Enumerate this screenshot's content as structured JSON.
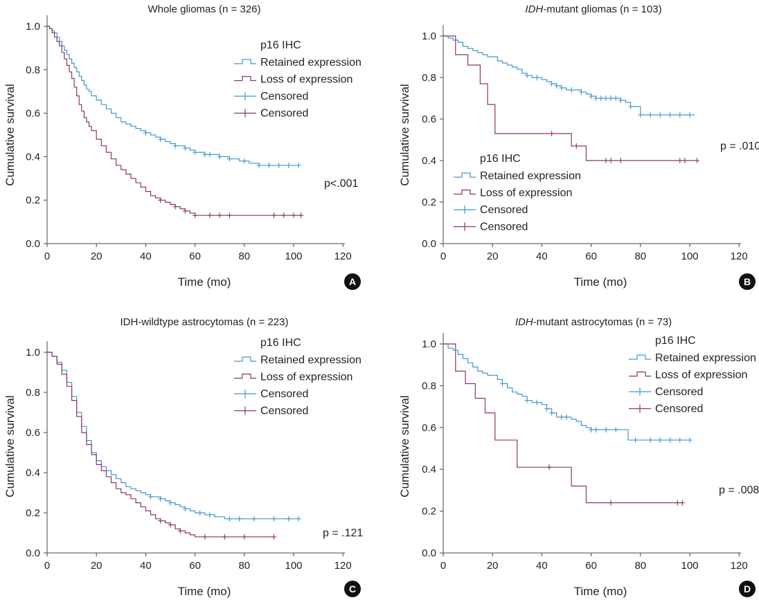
{
  "figure": {
    "colors": {
      "retained": "#3f97cf",
      "loss": "#8c3562",
      "axis": "#444444",
      "badge": "#111111"
    }
  },
  "chart_data": [
    {
      "type": "line",
      "title": "Whole gliomas (n = 326)",
      "title_italic": "",
      "title_rest": "Whole gliomas (n = 326)",
      "xlabel": "Time (mo)",
      "ylabel": "Cumulative survival",
      "xlim": [
        0,
        120
      ],
      "ylim": [
        0,
        1.0
      ],
      "xticks": [
        "0",
        "20",
        "40",
        "60",
        "80",
        "100",
        "120"
      ],
      "yticks": [
        "0.0",
        "0.2",
        "0.4",
        "0.6",
        "0.8",
        "1.0"
      ],
      "legend_title": "p16 IHC",
      "legend": [
        "Retained expression",
        "Loss of expression",
        "Censored",
        "Censored"
      ],
      "legend_position": "upper-right",
      "pvalue": "p<.001",
      "panel_label": "A",
      "series": [
        {
          "name": "Retained expression",
          "x": [
            0,
            1,
            2,
            3,
            4,
            5,
            6,
            7,
            8,
            9,
            10,
            11,
            12,
            13,
            14,
            15,
            16,
            17,
            18,
            20,
            22,
            24,
            26,
            28,
            30,
            32,
            34,
            36,
            38,
            40,
            42,
            44,
            46,
            48,
            50,
            52,
            54,
            56,
            58,
            60,
            62,
            64,
            66,
            68,
            70,
            72,
            74,
            76,
            78,
            80,
            82,
            84,
            86,
            88,
            90,
            92,
            94,
            96,
            98,
            100,
            102
          ],
          "y": [
            1.0,
            0.99,
            0.98,
            0.97,
            0.95,
            0.93,
            0.91,
            0.89,
            0.87,
            0.85,
            0.83,
            0.81,
            0.79,
            0.77,
            0.75,
            0.73,
            0.71,
            0.7,
            0.68,
            0.66,
            0.64,
            0.62,
            0.6,
            0.58,
            0.56,
            0.55,
            0.54,
            0.53,
            0.52,
            0.51,
            0.5,
            0.49,
            0.48,
            0.47,
            0.46,
            0.45,
            0.45,
            0.44,
            0.43,
            0.42,
            0.42,
            0.41,
            0.41,
            0.41,
            0.4,
            0.4,
            0.39,
            0.39,
            0.38,
            0.38,
            0.37,
            0.37,
            0.36,
            0.36,
            0.36,
            0.36,
            0.36,
            0.36,
            0.36,
            0.36,
            0.36
          ],
          "censored_x": [
            40,
            46,
            52,
            56,
            60,
            64,
            66,
            70,
            74,
            80,
            86,
            90,
            94,
            98,
            102
          ],
          "censored_y": [
            0.51,
            0.48,
            0.45,
            0.44,
            0.42,
            0.41,
            0.41,
            0.4,
            0.39,
            0.38,
            0.36,
            0.36,
            0.36,
            0.36,
            0.36
          ]
        },
        {
          "name": "Loss of expression",
          "x": [
            0,
            1,
            2,
            3,
            4,
            5,
            6,
            7,
            8,
            9,
            10,
            11,
            12,
            13,
            14,
            15,
            16,
            17,
            18,
            20,
            22,
            24,
            26,
            28,
            30,
            32,
            34,
            36,
            38,
            40,
            42,
            44,
            46,
            48,
            50,
            52,
            54,
            56,
            58,
            60,
            62,
            64,
            70,
            80,
            90,
            100,
            103
          ],
          "y": [
            1.0,
            0.99,
            0.97,
            0.95,
            0.93,
            0.91,
            0.88,
            0.85,
            0.82,
            0.79,
            0.76,
            0.72,
            0.68,
            0.64,
            0.61,
            0.58,
            0.56,
            0.54,
            0.52,
            0.48,
            0.45,
            0.42,
            0.39,
            0.36,
            0.34,
            0.32,
            0.3,
            0.28,
            0.26,
            0.24,
            0.22,
            0.21,
            0.2,
            0.19,
            0.18,
            0.17,
            0.16,
            0.15,
            0.14,
            0.13,
            0.13,
            0.13,
            0.13,
            0.13,
            0.13,
            0.13,
            0.13
          ],
          "censored_x": [
            46,
            52,
            56,
            60,
            66,
            70,
            74,
            92,
            96,
            100,
            103
          ],
          "censored_y": [
            0.2,
            0.17,
            0.15,
            0.13,
            0.13,
            0.13,
            0.13,
            0.13,
            0.13,
            0.13,
            0.13
          ]
        }
      ]
    },
    {
      "type": "line",
      "title": "IDH-mutant gliomas (n = 103)",
      "title_italic": "IDH",
      "title_rest": "-mutant gliomas (n = 103)",
      "xlabel": "Time (mo)",
      "ylabel": "Cumulative survival",
      "xlim": [
        0,
        120
      ],
      "ylim": [
        0,
        1.0
      ],
      "xticks": [
        "0",
        "20",
        "40",
        "60",
        "80",
        "100",
        "120"
      ],
      "yticks": [
        "0.0",
        "0.2",
        "0.4",
        "0.6",
        "0.8",
        "1.0"
      ],
      "legend_title": "p16 IHC",
      "legend": [
        "Retained expression",
        "Loss of expression",
        "Censored",
        "Censored"
      ],
      "legend_position": "lower-left",
      "pvalue": "p = .010",
      "panel_label": "B",
      "series": [
        {
          "name": "Retained expression",
          "x": [
            0,
            2,
            4,
            6,
            8,
            10,
            12,
            14,
            16,
            18,
            20,
            22,
            24,
            26,
            28,
            30,
            32,
            34,
            36,
            38,
            40,
            42,
            44,
            46,
            48,
            50,
            52,
            54,
            56,
            58,
            60,
            62,
            64,
            66,
            68,
            70,
            72,
            74,
            76,
            78,
            80,
            82,
            84,
            86,
            88,
            90,
            92,
            94,
            96,
            98,
            100,
            102
          ],
          "y": [
            1.0,
            0.99,
            0.98,
            0.97,
            0.95,
            0.94,
            0.93,
            0.92,
            0.91,
            0.9,
            0.9,
            0.88,
            0.87,
            0.86,
            0.85,
            0.84,
            0.82,
            0.81,
            0.8,
            0.8,
            0.79,
            0.78,
            0.77,
            0.76,
            0.75,
            0.74,
            0.74,
            0.74,
            0.73,
            0.72,
            0.71,
            0.7,
            0.7,
            0.7,
            0.7,
            0.7,
            0.69,
            0.68,
            0.66,
            0.66,
            0.62,
            0.62,
            0.62,
            0.62,
            0.62,
            0.62,
            0.62,
            0.62,
            0.62,
            0.62,
            0.62,
            0.62
          ],
          "censored_x": [
            34,
            38,
            44,
            46,
            48,
            52,
            56,
            60,
            62,
            64,
            66,
            68,
            70,
            72,
            76,
            80,
            84,
            88,
            92,
            96,
            100
          ],
          "censored_y": [
            0.81,
            0.8,
            0.77,
            0.76,
            0.75,
            0.74,
            0.73,
            0.71,
            0.7,
            0.7,
            0.7,
            0.7,
            0.7,
            0.69,
            0.66,
            0.62,
            0.62,
            0.62,
            0.62,
            0.62,
            0.62
          ]
        },
        {
          "name": "Loss of expression",
          "x": [
            0,
            5,
            10,
            15,
            18,
            21,
            30,
            40,
            44,
            50,
            52,
            56,
            58,
            64,
            70,
            80,
            90,
            96,
            103
          ],
          "y": [
            1.0,
            0.91,
            0.86,
            0.77,
            0.67,
            0.53,
            0.53,
            0.53,
            0.53,
            0.53,
            0.47,
            0.47,
            0.4,
            0.4,
            0.4,
            0.4,
            0.4,
            0.4,
            0.4
          ],
          "censored_x": [
            44,
            54,
            66,
            68,
            72,
            96,
            98,
            103
          ],
          "censored_y": [
            0.53,
            0.47,
            0.4,
            0.4,
            0.4,
            0.4,
            0.4,
            0.4
          ]
        }
      ]
    },
    {
      "type": "line",
      "title": "IDH-wildtype astrocytomas (n = 223)",
      "title_italic": "",
      "title_rest": "IDH-wildtype astrocytomas (n = 223)",
      "xlabel": "Time (mo)",
      "ylabel": "Cumulative survival",
      "xlim": [
        0,
        120
      ],
      "ylim": [
        0,
        1.0
      ],
      "xticks": [
        "0",
        "20",
        "40",
        "60",
        "80",
        "100",
        "120"
      ],
      "yticks": [
        "0.0",
        "0.2",
        "0.4",
        "0.6",
        "0.8",
        "1.0"
      ],
      "legend_title": "p16 IHC",
      "legend": [
        "Retained expression",
        "Loss of expression",
        "Censored",
        "Censored"
      ],
      "legend_position": "upper-right",
      "pvalue": "p = .121",
      "panel_label": "C",
      "series": [
        {
          "name": "Retained expression",
          "x": [
            0,
            2,
            4,
            6,
            8,
            10,
            12,
            14,
            16,
            18,
            20,
            22,
            24,
            26,
            28,
            30,
            32,
            34,
            36,
            38,
            40,
            42,
            44,
            46,
            48,
            50,
            52,
            54,
            56,
            58,
            60,
            64,
            68,
            72,
            76,
            80,
            90,
            100,
            102
          ],
          "y": [
            1.0,
            0.98,
            0.95,
            0.91,
            0.85,
            0.78,
            0.7,
            0.63,
            0.56,
            0.5,
            0.46,
            0.43,
            0.41,
            0.39,
            0.37,
            0.35,
            0.33,
            0.32,
            0.31,
            0.3,
            0.29,
            0.28,
            0.28,
            0.27,
            0.26,
            0.25,
            0.24,
            0.23,
            0.22,
            0.21,
            0.2,
            0.19,
            0.18,
            0.17,
            0.17,
            0.17,
            0.17,
            0.17,
            0.17
          ],
          "censored_x": [
            42,
            46,
            50,
            56,
            62,
            66,
            74,
            78,
            84,
            92,
            98,
            102
          ],
          "censored_y": [
            0.28,
            0.27,
            0.25,
            0.22,
            0.2,
            0.19,
            0.17,
            0.17,
            0.17,
            0.17,
            0.17,
            0.17
          ]
        },
        {
          "name": "Loss of expression",
          "x": [
            0,
            2,
            4,
            6,
            8,
            10,
            12,
            14,
            16,
            18,
            20,
            22,
            24,
            26,
            28,
            30,
            32,
            34,
            36,
            38,
            40,
            42,
            44,
            46,
            48,
            50,
            52,
            54,
            56,
            58,
            60,
            70,
            80,
            92
          ],
          "y": [
            1.0,
            0.98,
            0.94,
            0.89,
            0.83,
            0.76,
            0.68,
            0.6,
            0.54,
            0.49,
            0.44,
            0.41,
            0.38,
            0.35,
            0.32,
            0.3,
            0.29,
            0.27,
            0.25,
            0.23,
            0.21,
            0.19,
            0.17,
            0.16,
            0.15,
            0.14,
            0.12,
            0.11,
            0.1,
            0.09,
            0.08,
            0.08,
            0.08,
            0.08
          ],
          "censored_x": [
            46,
            50,
            54,
            64,
            72,
            80,
            92
          ],
          "censored_y": [
            0.16,
            0.14,
            0.11,
            0.08,
            0.08,
            0.08,
            0.08
          ]
        }
      ]
    },
    {
      "type": "line",
      "title": "IDH-mutant astrocytomas (n = 73)",
      "title_italic": "IDH",
      "title_rest": "-mutant astrocytomas (n = 73)",
      "xlabel": "Time (mo)",
      "ylabel": "Cumulative survival",
      "xlim": [
        0,
        120
      ],
      "ylim": [
        0,
        1.0
      ],
      "xticks": [
        "0",
        "20",
        "40",
        "60",
        "80",
        "100",
        "120"
      ],
      "yticks": [
        "0.0",
        "0.2",
        "0.4",
        "0.6",
        "0.8",
        "1.0"
      ],
      "legend_title": "p16 IHC",
      "legend": [
        "Retained expression",
        "Loss of expression",
        "Censored",
        "Censored"
      ],
      "legend_position": "upper-right",
      "pvalue": "p = .008",
      "panel_label": "D",
      "series": [
        {
          "name": "Retained expression",
          "x": [
            0,
            2,
            4,
            6,
            8,
            10,
            12,
            14,
            16,
            18,
            20,
            22,
            24,
            26,
            28,
            30,
            32,
            34,
            36,
            38,
            40,
            42,
            44,
            46,
            48,
            50,
            52,
            54,
            56,
            58,
            60,
            64,
            68,
            72,
            75,
            80,
            90,
            100
          ],
          "y": [
            1.0,
            0.98,
            0.97,
            0.95,
            0.93,
            0.91,
            0.89,
            0.87,
            0.86,
            0.85,
            0.85,
            0.83,
            0.81,
            0.79,
            0.77,
            0.76,
            0.75,
            0.73,
            0.72,
            0.72,
            0.71,
            0.69,
            0.67,
            0.65,
            0.65,
            0.65,
            0.64,
            0.63,
            0.61,
            0.6,
            0.59,
            0.59,
            0.59,
            0.59,
            0.54,
            0.54,
            0.54,
            0.54
          ],
          "censored_x": [
            24,
            34,
            38,
            42,
            44,
            48,
            50,
            60,
            62,
            66,
            70,
            78,
            84,
            88,
            92,
            96,
            100
          ],
          "censored_y": [
            0.81,
            0.73,
            0.72,
            0.69,
            0.67,
            0.65,
            0.65,
            0.59,
            0.59,
            0.59,
            0.59,
            0.54,
            0.54,
            0.54,
            0.54,
            0.54,
            0.54
          ]
        },
        {
          "name": "Loss of expression",
          "x": [
            0,
            5,
            9,
            13,
            17,
            21,
            30,
            40,
            43,
            50,
            52,
            58,
            68,
            80,
            90,
            97
          ],
          "y": [
            1.0,
            0.87,
            0.81,
            0.74,
            0.67,
            0.54,
            0.41,
            0.41,
            0.41,
            0.41,
            0.32,
            0.24,
            0.24,
            0.24,
            0.24,
            0.24
          ],
          "censored_x": [
            43,
            68,
            95,
            97
          ],
          "censored_y": [
            0.41,
            0.24,
            0.24,
            0.24
          ]
        }
      ]
    }
  ]
}
